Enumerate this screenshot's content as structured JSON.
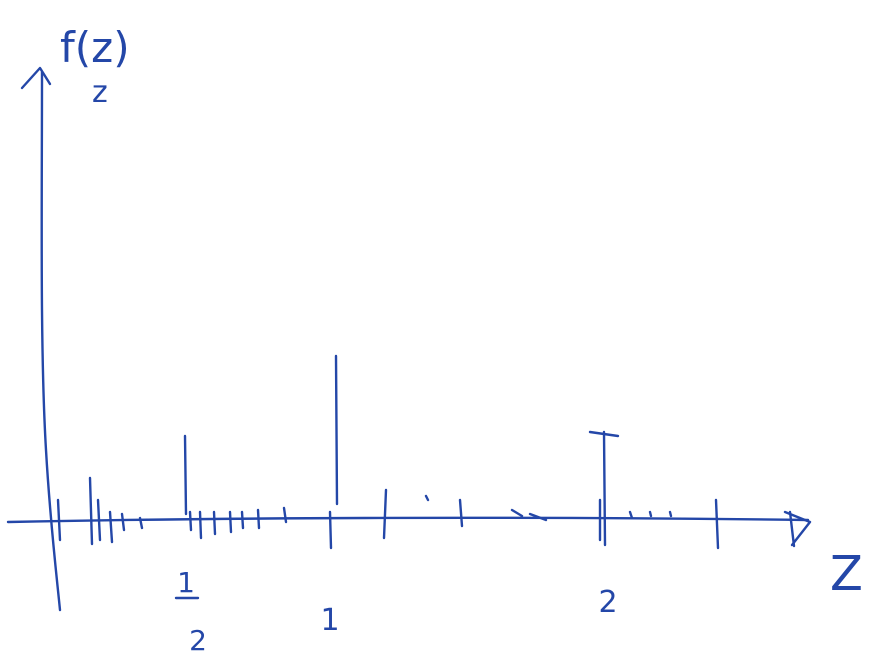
{
  "y_axis": {
    "label": "f(z)",
    "subscript": "z"
  },
  "x_axis": {
    "label": "Z"
  },
  "tick_labels": {
    "half": {
      "numerator": "1",
      "denominator": "2"
    },
    "one": "1",
    "two": "2"
  }
}
